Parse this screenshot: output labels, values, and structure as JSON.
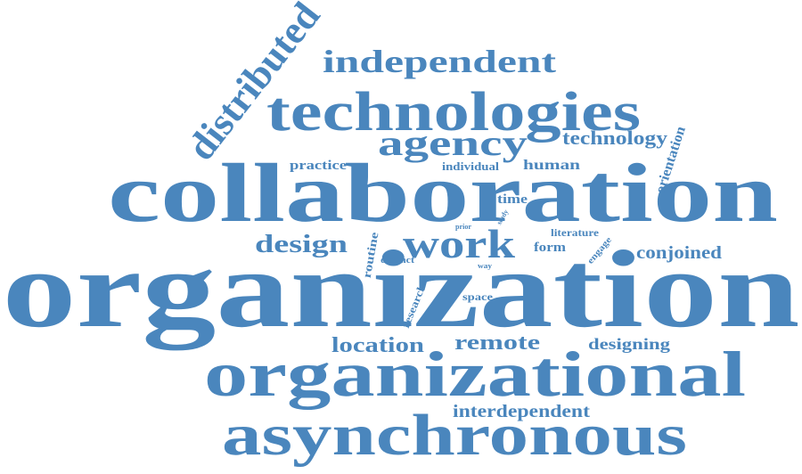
{
  "word_cloud": {
    "color": "#4a86bd",
    "words": {
      "organization": "organization",
      "collaboration": "collaboration",
      "organizational": "organizational",
      "asynchronous": "asynchronous",
      "technologies": "technologies",
      "independent": "independent",
      "distributed": "distributed",
      "agency": "agency",
      "work": "work",
      "design": "design",
      "technology": "technology",
      "orientation": "orientation",
      "practice": "practice",
      "individual": "individual",
      "human": "human",
      "time": "time",
      "study": "study",
      "prior": "prior",
      "literature": "literature",
      "routine": "routine",
      "distinct": "distinct",
      "form": "form",
      "engage": "engage",
      "conjoined": "conjoined",
      "way": "way",
      "research": "research",
      "space": "space",
      "location": "location",
      "remote": "remote",
      "designing": "designing",
      "interdependent": "interdependent"
    }
  }
}
